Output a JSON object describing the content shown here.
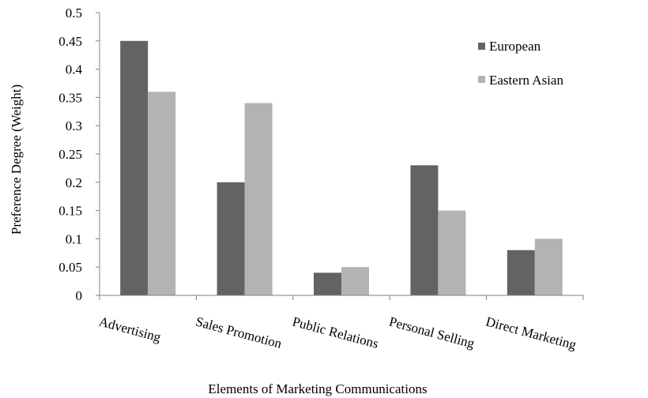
{
  "chart_data": {
    "type": "bar",
    "title": "",
    "xlabel": "Elements of Marketing Communications",
    "ylabel": "Preference Degree (Weight)",
    "categories": [
      "Advertising",
      "Sales Promotion",
      "Public Relations",
      "Personal Selling",
      "Direct Marketing"
    ],
    "series": [
      {
        "name": "European",
        "color": "#636363",
        "values": [
          0.45,
          0.2,
          0.04,
          0.23,
          0.08
        ]
      },
      {
        "name": "Eastern Asian",
        "color": "#b3b3b3",
        "values": [
          0.36,
          0.34,
          0.05,
          0.15,
          0.1
        ]
      }
    ],
    "ylim": [
      0,
      0.5
    ],
    "yticks": [
      "0",
      "0.05",
      "0.1",
      "0.15",
      "0.2",
      "0.25",
      "0.3",
      "0.35",
      "0.4",
      "0.45",
      "0.5"
    ],
    "grid": false,
    "legend": "top-right"
  }
}
